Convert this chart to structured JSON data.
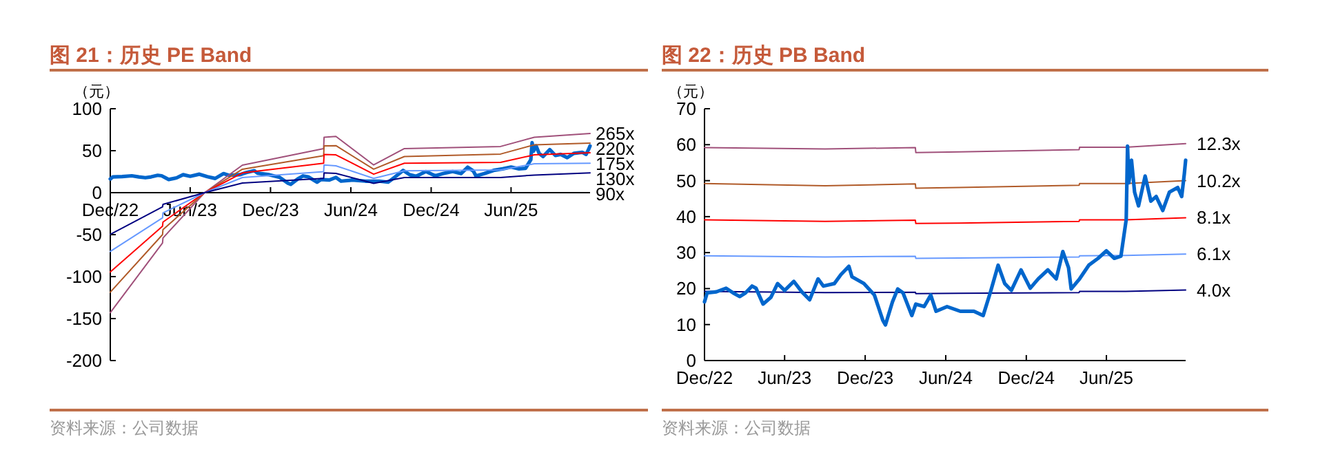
{
  "chart_data": [
    {
      "type": "line",
      "title": "图 21：历史 PE Band",
      "ylabel": "（元）",
      "annotations": [
        "资料来源：公司数据"
      ],
      "xlim": [
        "2022-12-01",
        "2025-11-28"
      ],
      "ylim": [
        -200,
        100
      ],
      "yticks": [
        -200,
        -150,
        -100,
        -50,
        0,
        50,
        100
      ],
      "xticks": [
        {
          "value": "2022-12-01",
          "label": "Dec/22"
        },
        {
          "value": "2023-06-01",
          "label": "Jun/23"
        },
        {
          "value": "2023-12-01",
          "label": "Dec/23"
        },
        {
          "value": "2024-06-01",
          "label": "Jun/24"
        },
        {
          "value": "2024-12-01",
          "label": "Dec/24"
        },
        {
          "value": "2025-06-01",
          "label": "Jun/25"
        }
      ],
      "series": [
        {
          "color": "#0066cc",
          "x": [
            "2022-12-01",
            "2022-12-07",
            "2022-12-28",
            "2023-01-19",
            "2023-02-04",
            "2023-02-19",
            "2023-03-04",
            "2023-03-19",
            "2023-03-28",
            "2023-04-13",
            "2023-05-01",
            "2023-05-16",
            "2023-06-01",
            "2023-06-22",
            "2023-07-10",
            "2023-07-28",
            "2023-08-16",
            "2023-08-28",
            "2023-09-22",
            "2023-10-07",
            "2023-10-25",
            "2023-11-01",
            "2023-11-28",
            "2023-12-22",
            "2024-01-10",
            "2024-01-16",
            "2024-02-01",
            "2024-02-13",
            "2024-02-25",
            "2024-03-16",
            "2024-03-25",
            "2024-04-13",
            "2024-04-28",
            "2024-05-10",
            "2024-06-04",
            "2024-07-04",
            "2024-08-04",
            "2024-08-25",
            "2024-09-10",
            "2024-09-28",
            "2024-10-13",
            "2024-10-28",
            "2024-11-19",
            "2024-12-10",
            "2024-12-28",
            "2025-01-19",
            "2025-02-07",
            "2025-02-22",
            "2025-03-07",
            "2025-03-13",
            "2025-04-01",
            "2025-04-22",
            "2025-05-13",
            "2025-06-01",
            "2025-06-19",
            "2025-07-04",
            "2025-07-16",
            "2025-07-19",
            "2025-07-22",
            "2025-07-28",
            "2025-08-04",
            "2025-08-13",
            "2025-08-28",
            "2025-09-10",
            "2025-09-22",
            "2025-10-07",
            "2025-10-22",
            "2025-11-10",
            "2025-11-19",
            "2025-11-25",
            "2025-11-28"
          ],
          "values": [
            16.3,
            18.8,
            19.1,
            20.1,
            18.8,
            17.8,
            18.8,
            20.7,
            20.1,
            15.7,
            17.6,
            21.4,
            19.5,
            22.0,
            19.1,
            16.9,
            22.7,
            20.7,
            21.4,
            23.9,
            26.2,
            23.3,
            21.4,
            18.2,
            11.2,
            9.9,
            16.3,
            19.9,
            18.8,
            12.5,
            15.7,
            15.0,
            18.2,
            13.7,
            15.0,
            13.7,
            13.7,
            12.5,
            18.8,
            26.5,
            21.4,
            19.5,
            25.2,
            20.1,
            22.7,
            25.2,
            22.7,
            30.3,
            25.8,
            19.9,
            22.7,
            26.5,
            28.4,
            30.5,
            28.4,
            29.0,
            39.2,
            59.6,
            49.4,
            55.7,
            46.8,
            43.0,
            51.3,
            44.3,
            45.6,
            41.7,
            46.8,
            48.1,
            45.6,
            51.9,
            55.7
          ]
        },
        {
          "name": "265x",
          "color": "#a0507a",
          "x": [
            "2022-12-01",
            "2023-03-30",
            "2023-03-31",
            "2023-07-04",
            "2023-09-28",
            "2024-03-31",
            "2024-04-01",
            "2024-04-28",
            "2024-07-23",
            "2024-10-01",
            "2025-05-08",
            "2025-07-24",
            "2025-11-28"
          ],
          "values": [
            -143,
            -60,
            -54,
            0,
            32.8,
            52.5,
            66,
            67,
            33,
            52.5,
            55,
            66,
            70.5
          ]
        },
        {
          "name": "220x",
          "color": "#b05a28",
          "x": [
            "2022-12-01",
            "2023-03-30",
            "2023-03-31",
            "2023-07-04",
            "2023-09-28",
            "2024-03-31",
            "2024-04-01",
            "2024-04-28",
            "2024-07-23",
            "2024-10-01",
            "2025-05-08",
            "2025-07-24",
            "2025-11-28"
          ],
          "values": [
            -118.6,
            -50,
            -44,
            0,
            27.9,
            44,
            55.7,
            56,
            28,
            43,
            46,
            57,
            59
          ]
        },
        {
          "name": "175x",
          "color": "#ff0000",
          "x": [
            "2022-12-01",
            "2023-03-30",
            "2023-03-31",
            "2023-07-04",
            "2023-09-28",
            "2024-03-31",
            "2024-04-01",
            "2024-04-28",
            "2024-07-23",
            "2024-10-01",
            "2025-05-08",
            "2025-07-24",
            "2025-11-28"
          ],
          "values": [
            -94.5,
            -40,
            -35,
            0,
            23.5,
            35,
            45.4,
            45,
            22,
            35,
            36,
            45,
            47.5
          ]
        },
        {
          "name": "130x",
          "color": "#6699ff",
          "x": [
            "2022-12-01",
            "2023-03-30",
            "2023-03-31",
            "2023-07-04",
            "2023-09-28",
            "2024-03-31",
            "2024-04-01",
            "2024-04-28",
            "2024-07-23",
            "2024-10-01",
            "2025-05-08",
            "2025-07-24",
            "2025-11-28"
          ],
          "values": [
            -70,
            -30,
            -24,
            0,
            18,
            25,
            33,
            32,
            17,
            26,
            27,
            34.4,
            35
          ]
        },
        {
          "name": "90x",
          "color": "#000080",
          "x": [
            "2022-12-01",
            "2023-03-30",
            "2023-03-31",
            "2023-07-04",
            "2023-09-28",
            "2024-03-31",
            "2024-04-01",
            "2024-04-28",
            "2024-07-23",
            "2024-10-01",
            "2025-05-08",
            "2025-07-24",
            "2025-11-28"
          ],
          "values": [
            -49.7,
            -17,
            -14,
            0,
            11.5,
            17,
            23.5,
            23,
            11,
            18,
            18,
            21,
            23.5
          ]
        }
      ]
    },
    {
      "type": "line",
      "title": "图 22：历史 PB Band",
      "ylabel": "（元）",
      "annotations": [
        "资料来源：公司数据"
      ],
      "xlim": [
        "2022-12-01",
        "2025-11-28"
      ],
      "ylim": [
        0,
        70
      ],
      "yticks": [
        0,
        10,
        20,
        30,
        40,
        50,
        60,
        70
      ],
      "xticks": [
        {
          "value": "2022-12-01",
          "label": "Dec/22"
        },
        {
          "value": "2023-06-01",
          "label": "Jun/23"
        },
        {
          "value": "2023-12-01",
          "label": "Dec/23"
        },
        {
          "value": "2024-06-01",
          "label": "Jun/24"
        },
        {
          "value": "2024-12-01",
          "label": "Dec/24"
        },
        {
          "value": "2025-06-01",
          "label": "Jun/25"
        }
      ],
      "series": [
        {
          "name": "12.3x",
          "color": "#a0507a",
          "x": [
            "2022-12-01",
            "2023-09-01",
            "2024-03-24",
            "2024-03-25",
            "2024-07-01",
            "2025-03-31",
            "2025-04-01",
            "2025-07-15",
            "2025-11-28"
          ],
          "values": [
            59.2,
            58.8,
            59.2,
            57.8,
            58.0,
            58.6,
            59.3,
            59.3,
            60.3
          ]
        },
        {
          "name": "10.2x",
          "color": "#b05a28",
          "x": [
            "2022-12-01",
            "2023-09-01",
            "2024-03-24",
            "2024-03-25",
            "2024-07-01",
            "2025-03-31",
            "2025-04-01",
            "2025-07-15",
            "2025-11-28"
          ],
          "values": [
            49.2,
            48.6,
            49.1,
            47.9,
            48.1,
            48.7,
            49.2,
            49.2,
            50.0
          ]
        },
        {
          "name": "8.1x",
          "color": "#ff0000",
          "x": [
            "2022-12-01",
            "2023-09-01",
            "2024-03-24",
            "2024-03-25",
            "2024-07-01",
            "2025-03-31",
            "2025-04-01",
            "2025-07-15",
            "2025-11-28"
          ],
          "values": [
            39.1,
            38.7,
            39.0,
            38.1,
            38.2,
            38.7,
            39.1,
            39.1,
            39.7
          ]
        },
        {
          "name": "6.1x",
          "color": "#6699ff",
          "x": [
            "2022-12-01",
            "2023-09-01",
            "2024-03-24",
            "2024-03-25",
            "2024-07-01",
            "2025-03-31",
            "2025-04-01",
            "2025-07-15",
            "2025-11-28"
          ],
          "values": [
            29.1,
            28.8,
            29.0,
            28.4,
            28.5,
            28.8,
            29.1,
            29.2,
            29.6
          ]
        },
        {
          "name": "4.0x",
          "color": "#000080",
          "x": [
            "2022-12-01",
            "2023-09-01",
            "2024-03-24",
            "2024-03-25",
            "2024-07-01",
            "2025-03-31",
            "2025-04-01",
            "2025-07-15",
            "2025-11-28"
          ],
          "values": [
            19.2,
            18.9,
            19.0,
            18.6,
            18.7,
            18.9,
            19.2,
            19.2,
            19.6
          ]
        },
        {
          "color": "#0066cc",
          "x": [
            "2022-12-01",
            "2022-12-07",
            "2022-12-28",
            "2023-01-19",
            "2023-02-04",
            "2023-02-19",
            "2023-03-04",
            "2023-03-19",
            "2023-03-28",
            "2023-04-13",
            "2023-05-01",
            "2023-05-16",
            "2023-06-01",
            "2023-06-22",
            "2023-07-10",
            "2023-07-28",
            "2023-08-16",
            "2023-08-28",
            "2023-09-22",
            "2023-10-07",
            "2023-10-25",
            "2023-11-01",
            "2023-11-28",
            "2023-12-22",
            "2024-01-10",
            "2024-01-16",
            "2024-02-01",
            "2024-02-13",
            "2024-02-25",
            "2024-03-16",
            "2024-03-25",
            "2024-04-13",
            "2024-04-28",
            "2024-05-10",
            "2024-06-04",
            "2024-07-04",
            "2024-08-04",
            "2024-08-25",
            "2024-09-10",
            "2024-09-28",
            "2024-10-13",
            "2024-10-28",
            "2024-11-19",
            "2024-12-10",
            "2024-12-28",
            "2025-01-19",
            "2025-02-07",
            "2025-02-22",
            "2025-03-07",
            "2025-03-13",
            "2025-04-01",
            "2025-04-22",
            "2025-05-13",
            "2025-06-01",
            "2025-06-19",
            "2025-07-04",
            "2025-07-16",
            "2025-07-19",
            "2025-07-22",
            "2025-07-28",
            "2025-08-04",
            "2025-08-13",
            "2025-08-28",
            "2025-09-10",
            "2025-09-22",
            "2025-10-07",
            "2025-10-22",
            "2025-11-10",
            "2025-11-19",
            "2025-11-25",
            "2025-11-28"
          ],
          "values": [
            16.3,
            18.8,
            19.1,
            20.1,
            18.8,
            17.8,
            18.8,
            20.7,
            20.1,
            15.7,
            17.6,
            21.4,
            19.5,
            22.0,
            19.1,
            16.9,
            22.7,
            20.7,
            21.4,
            23.9,
            26.2,
            23.3,
            21.4,
            18.2,
            11.2,
            9.9,
            16.3,
            19.9,
            18.8,
            12.5,
            15.7,
            15.0,
            18.2,
            13.7,
            15.0,
            13.7,
            13.7,
            12.5,
            18.8,
            26.5,
            21.4,
            19.5,
            25.2,
            20.1,
            22.7,
            25.2,
            22.7,
            30.3,
            25.8,
            19.9,
            22.7,
            26.5,
            28.4,
            30.5,
            28.4,
            29.0,
            39.2,
            59.6,
            49.4,
            55.7,
            46.8,
            43.0,
            51.3,
            44.3,
            45.6,
            41.7,
            46.8,
            48.1,
            45.6,
            51.9,
            55.7
          ]
        }
      ]
    }
  ]
}
